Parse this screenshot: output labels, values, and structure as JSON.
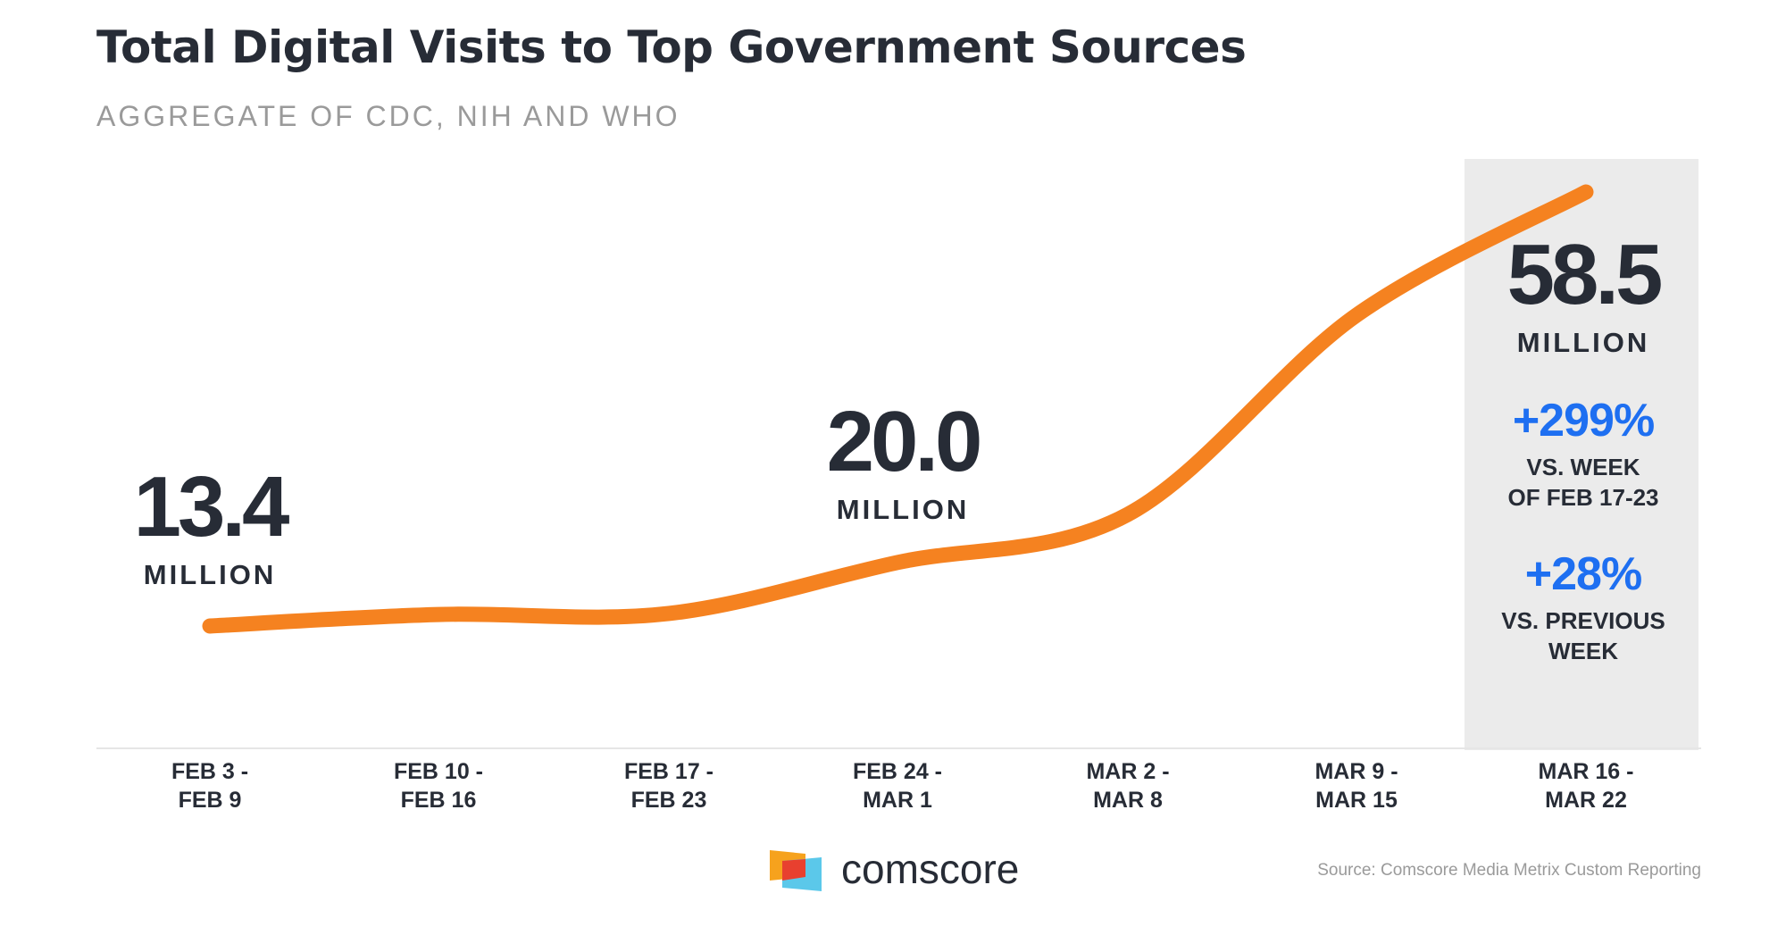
{
  "title": "Total Digital Visits to Top Government Sources",
  "subtitle": "AGGREGATE OF CDC, NIH AND WHO",
  "chart_data": {
    "type": "line",
    "title": "Total Digital Visits to Top Government Sources",
    "subtitle": "AGGREGATE OF CDC, NIH AND WHO",
    "categories": [
      [
        "FEB 3 -",
        "FEB 9"
      ],
      [
        "FEB 10 -",
        "FEB 16"
      ],
      [
        "FEB 17 -",
        "FEB 23"
      ],
      [
        "FEB 24 -",
        "MAR 1"
      ],
      [
        "MAR 2 -",
        "MAR 8"
      ],
      [
        "MAR 9 -",
        "MAR 15"
      ],
      [
        "MAR 16 -",
        "MAR 22"
      ]
    ],
    "values": [
      13.4,
      14.6,
      14.7,
      20.0,
      25.0,
      45.7,
      58.5
    ],
    "unit": "MILLION",
    "ylim": [
      0,
      65
    ],
    "grid": false,
    "line_color": "#f58220",
    "highlight_category_index": 6,
    "highlight_color": "#ebebeb",
    "data_labels": [
      {
        "index": 0,
        "value": "13.4",
        "unit": "MILLION"
      },
      {
        "index": 3,
        "value": "20.0",
        "unit": "MILLION"
      },
      {
        "index": 6,
        "value": "58.5",
        "unit": "MILLION"
      }
    ],
    "annotations": [
      {
        "value": "+299%",
        "lines": [
          "VS. WEEK",
          "OF FEB 17-23"
        ]
      },
      {
        "value": "+28%",
        "lines": [
          "VS. PREVIOUS",
          "WEEK"
        ]
      }
    ],
    "accent_color": "#1e6ff1"
  },
  "footer": {
    "brand": "comscore",
    "source": "Source: Comscore Media Metrix Custom Reporting"
  }
}
